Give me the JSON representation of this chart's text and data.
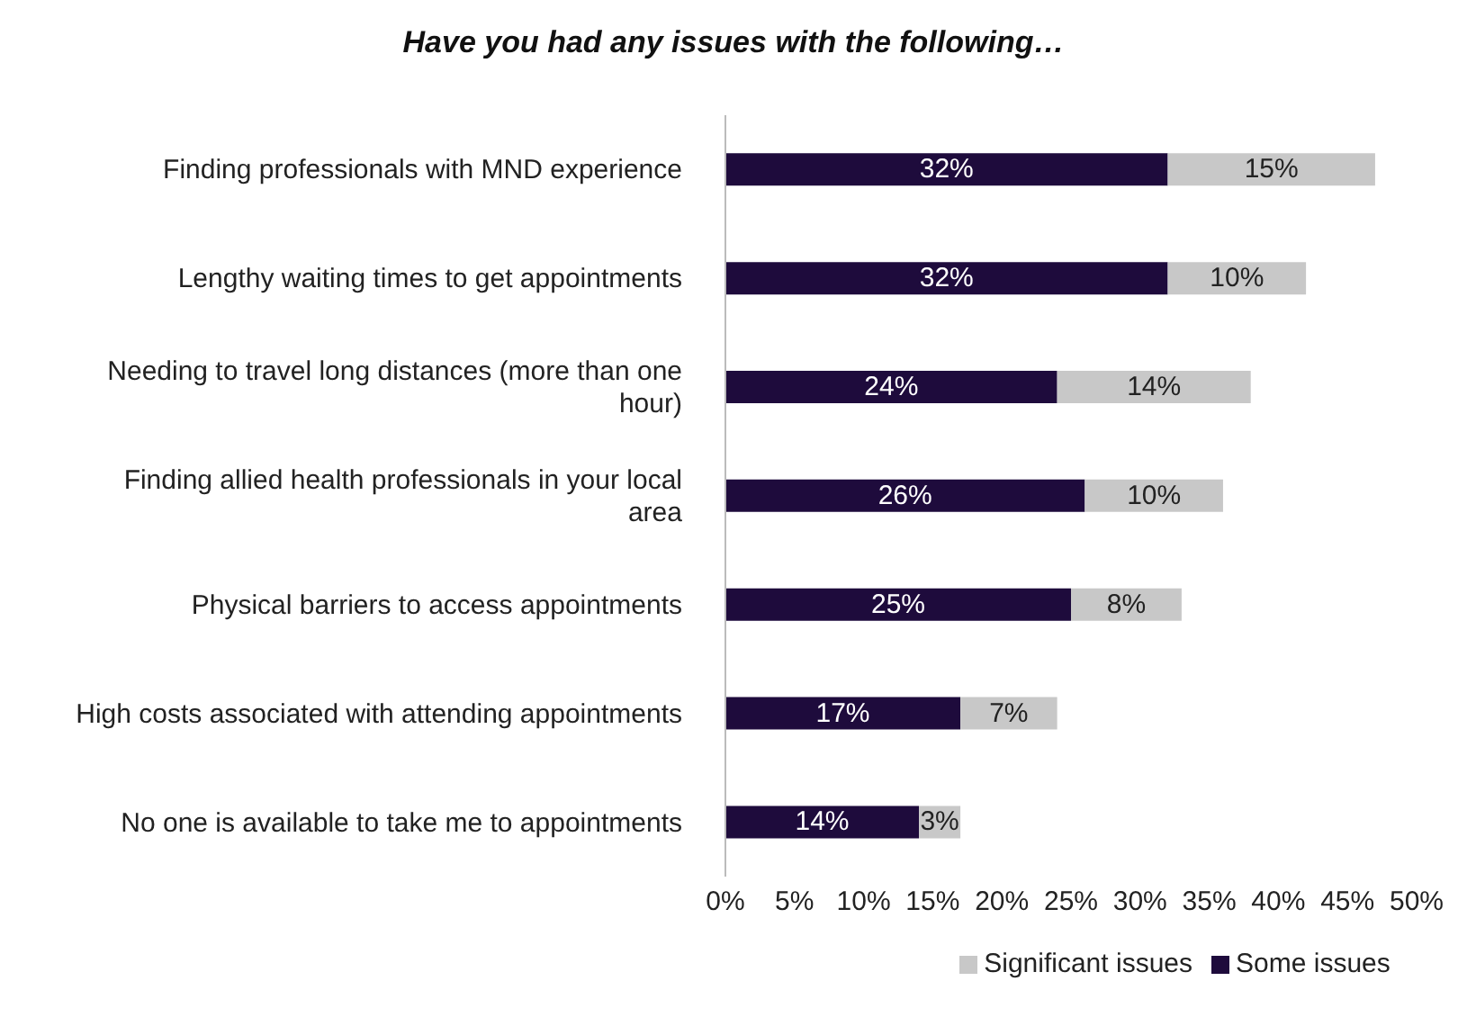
{
  "chart_data": {
    "type": "bar",
    "orientation": "horizontal",
    "stacked": true,
    "title": "Have you had any issues with the following…",
    "categories": [
      "Finding professionals with MND experience",
      "Lengthy waiting times to get appointments",
      "Needing to travel long distances (more than one hour)",
      "Finding allied health professionals in your local area",
      "Physical barriers to access appointments",
      "High costs associated with attending appointments",
      "No one is available to take me to appointments"
    ],
    "series": [
      {
        "name": "Some issues",
        "color": "#1e0b3c",
        "values": [
          32,
          32,
          24,
          26,
          25,
          17,
          14
        ],
        "value_labels": [
          "32%",
          "32%",
          "24%",
          "26%",
          "25%",
          "17%",
          "14%"
        ]
      },
      {
        "name": "Significant issues",
        "color": "#c8c8c8",
        "values": [
          15,
          10,
          14,
          10,
          8,
          7,
          3
        ],
        "value_labels": [
          "15%",
          "10%",
          "14%",
          "10%",
          "8%",
          "7%",
          "3%"
        ]
      }
    ],
    "xlim": [
      0,
      50
    ],
    "xticks": [
      {
        "value": 0,
        "label": "0%"
      },
      {
        "value": 5,
        "label": "5%"
      },
      {
        "value": 10,
        "label": "10%"
      },
      {
        "value": 15,
        "label": "15%"
      },
      {
        "value": 20,
        "label": "20%"
      },
      {
        "value": 25,
        "label": "25%"
      },
      {
        "value": 30,
        "label": "30%"
      },
      {
        "value": 35,
        "label": "35%"
      },
      {
        "value": 40,
        "label": "40%"
      },
      {
        "value": 45,
        "label": "45%"
      },
      {
        "value": 50,
        "label": "50%"
      }
    ],
    "grid": false,
    "legend": "bottom"
  }
}
